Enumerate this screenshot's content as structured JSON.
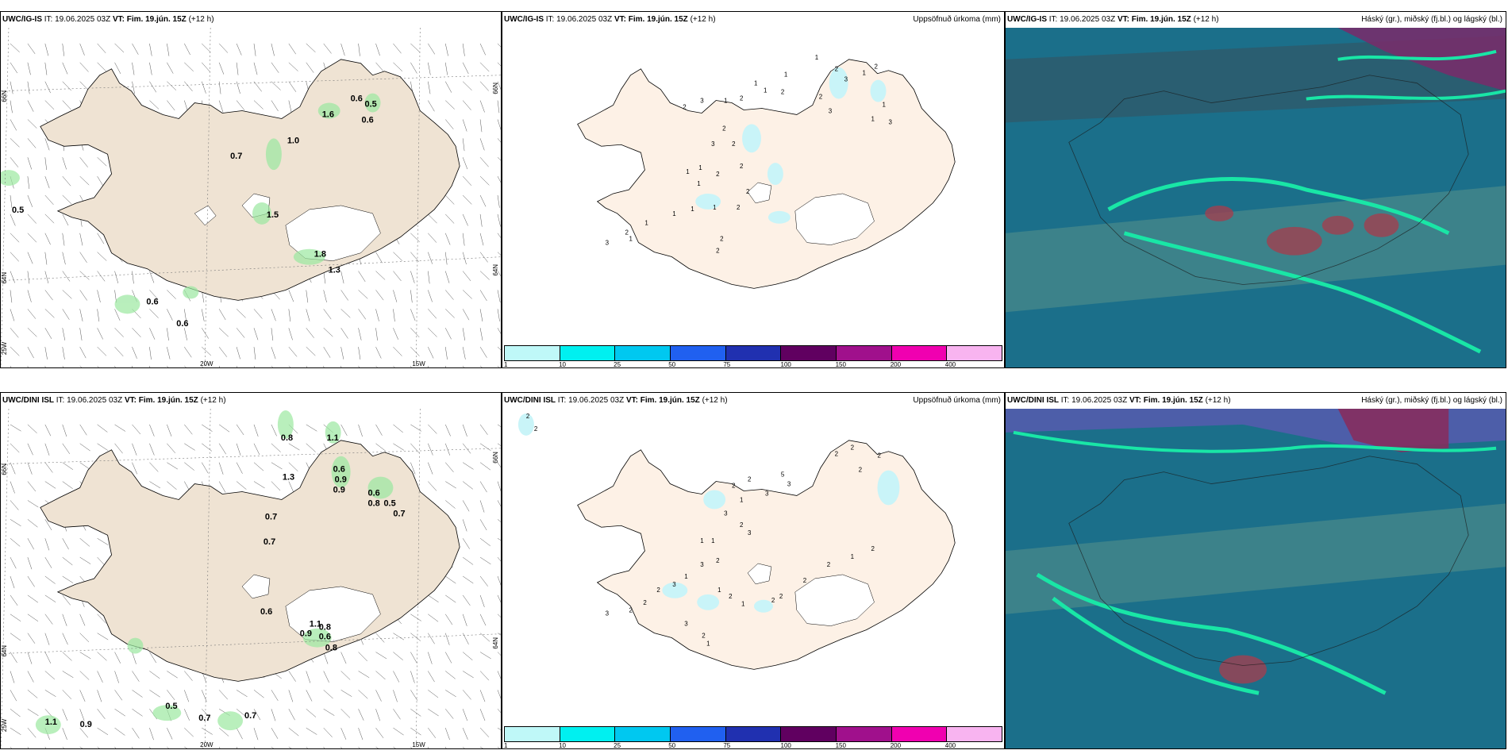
{
  "header_common": {
    "it_label": "IT:",
    "it_value": "19.06.2025 03Z",
    "vt_label": "VT:",
    "vt_value": "Fim. 19.jún. 15Z",
    "offset": "(+12 h)"
  },
  "rows": [
    {
      "model": "UWC/IG-IS",
      "wind": {
        "values": [
          "0.5",
          "0.7",
          "1.0",
          "0.6",
          "0.5",
          "0.6",
          "1.6",
          "1.5",
          "1.8",
          "1.3",
          "0.6",
          "0.6"
        ],
        "lon_labels": [
          "20W",
          "15W"
        ],
        "lat_labels": [
          "66N",
          "64N",
          "25W"
        ],
        "right_lat_labels": [
          "66N",
          "64N"
        ]
      },
      "precip": {
        "title": "Uppsöfnuð úrkoma (mm)",
        "values": [
          "2",
          "3",
          "1",
          "2",
          "1",
          "1",
          "1",
          "1",
          "2",
          "2",
          "3",
          "1",
          "1",
          "3",
          "2",
          "1",
          "3",
          "2",
          "2",
          "2",
          "3",
          "1",
          "1",
          "2",
          "1",
          "2",
          "2",
          "2",
          "1",
          "1",
          "1",
          "1",
          "2",
          "1",
          "3",
          "2",
          "2"
        ]
      },
      "cloud": {
        "title": "Háský (gr.), miðský (fj.bl.) og lágský (bl.)"
      }
    },
    {
      "model": "UWC/DINI ISL",
      "wind": {
        "values": [
          "0.8",
          "1.1",
          "0.6",
          "0.9",
          "0.9",
          "1.3",
          "0.6",
          "0.8",
          "0.5",
          "0.7",
          "0.7",
          "0.7",
          "0.6",
          "1.1",
          "0.9",
          "0.8",
          "0.6",
          "0.8",
          "0.5",
          "0.7",
          "0.7",
          "1.1",
          "0.9"
        ],
        "lon_labels": [
          "20W",
          "15W"
        ],
        "lat_labels": [
          "66N",
          "64N",
          "25W"
        ],
        "right_lat_labels": [
          "66N",
          "64N"
        ]
      },
      "precip": {
        "title": "Uppsöfnuð úrkoma (mm)",
        "values": [
          "2",
          "2",
          "2",
          "2",
          "2",
          "2",
          "5",
          "3",
          "2",
          "2",
          "3",
          "1",
          "3",
          "2",
          "3",
          "1",
          "1",
          "3",
          "2",
          "1",
          "3",
          "2",
          "2",
          "2",
          "3",
          "1",
          "2",
          "1",
          "2",
          "2",
          "2",
          "2",
          "1",
          "2",
          "3",
          "2",
          "1"
        ]
      },
      "cloud": {
        "title": "Háský (gr.), miðský (fj.bl.) og lágský (bl.)"
      }
    }
  ],
  "colorbar": {
    "ticks": [
      "1",
      "10",
      "25",
      "50",
      "75",
      "100",
      "150",
      "200",
      "400"
    ],
    "colors": [
      "#bff8f8",
      "#00f0f0",
      "#00c8f0",
      "#2060f0",
      "#2030b0",
      "#600060",
      "#a0108c",
      "#f000b0",
      "#f8b4f0"
    ]
  },
  "colors": {
    "land": "#efe3d3",
    "precip_land": "#fdf1e6",
    "ocean_cloud": "#1b6f8a",
    "cloud_green": "#19e6a6",
    "precip_green": "#9be8a0",
    "precip_blue": "#c9f4f8"
  }
}
